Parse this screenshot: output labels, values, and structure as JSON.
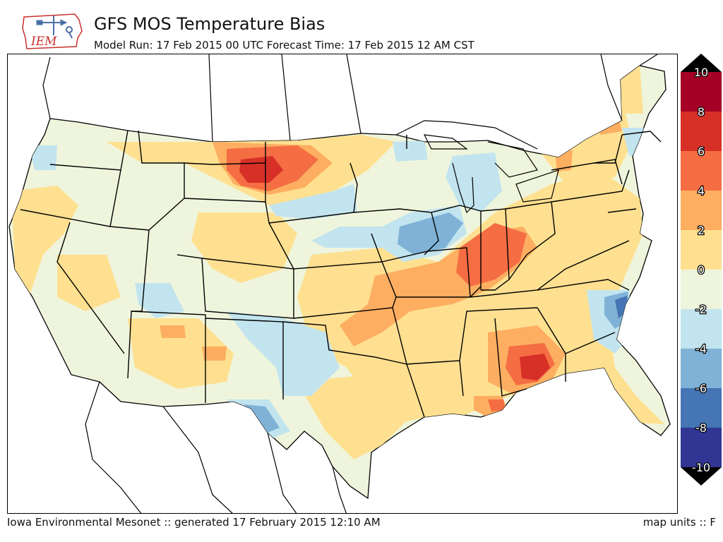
{
  "header": {
    "title": "GFS MOS Temperature Bias",
    "subtitle": "Model Run: 17 Feb 2015 00 UTC Forecast Time: 17 Feb 2015 12 AM CST",
    "logo_text": "IEM"
  },
  "footer": {
    "left": "Iowa Environmental Mesonet :: generated 17 February 2015 12:10 AM",
    "right": "map units :: F"
  },
  "legend": {
    "tick_labels": [
      "10",
      "8",
      "6",
      "4",
      "2",
      "0",
      "-2",
      "-4",
      "-6",
      "-8",
      "-10"
    ],
    "bins": [
      {
        "min": 8,
        "max": 10,
        "color": "#a50026"
      },
      {
        "min": 6,
        "max": 8,
        "color": "#d73027"
      },
      {
        "min": 4,
        "max": 6,
        "color": "#f46d43"
      },
      {
        "min": 2,
        "max": 4,
        "color": "#fdae61"
      },
      {
        "min": 0,
        "max": 2,
        "color": "#fee090"
      },
      {
        "min": -2,
        "max": 0,
        "color": "#eff5dc"
      },
      {
        "min": -4,
        "max": -2,
        "color": "#c2e4ef"
      },
      {
        "min": -6,
        "max": -4,
        "color": "#7fb2d6"
      },
      {
        "min": -8,
        "max": -6,
        "color": "#4575b4"
      },
      {
        "min": -10,
        "max": -8,
        "color": "#313695"
      }
    ],
    "over_color": "#000000",
    "under_color": "#000000"
  },
  "colors": {
    "background_fill": "#eff5dc",
    "outline": "#000000"
  }
}
